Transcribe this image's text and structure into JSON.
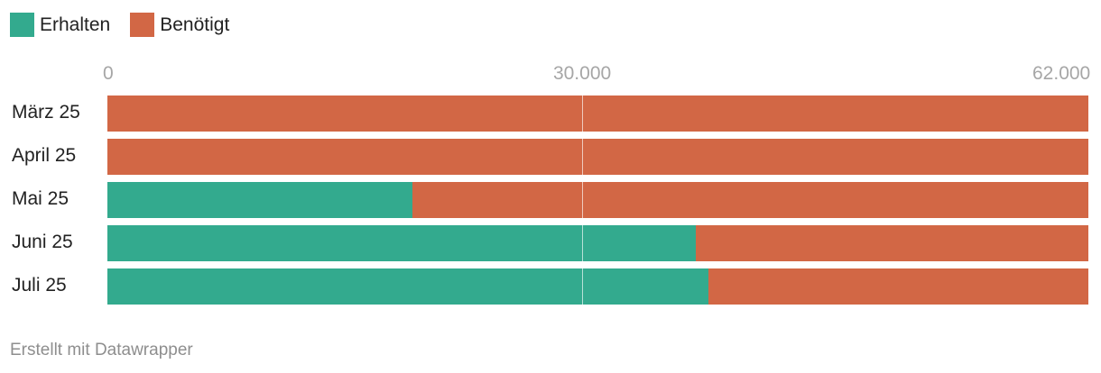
{
  "legend": {
    "items": [
      {
        "label": "Erhalten",
        "color": "#33aa8e"
      },
      {
        "label": "Benötigt",
        "color": "#d26745"
      }
    ]
  },
  "footer": {
    "credit": "Erstellt mit Datawrapper"
  },
  "chart_data": {
    "type": "bar",
    "orientation": "horizontal",
    "stacked": true,
    "categories": [
      "März 25",
      "April 25",
      "Mai 25",
      "Juni 25",
      "Juli 25"
    ],
    "series": [
      {
        "name": "Erhalten",
        "color": "#33aa8e",
        "values": [
          0,
          0,
          19300,
          37200,
          38000
        ]
      },
      {
        "name": "Benötigt",
        "color": "#d26745",
        "values": [
          62000,
          62000,
          42700,
          24800,
          24000
        ]
      }
    ],
    "ticks": [
      {
        "value": 0,
        "label": "0"
      },
      {
        "value": 30000,
        "label": "30.000"
      },
      {
        "value": 62000,
        "label": "62.000"
      }
    ],
    "xlim": [
      0,
      62000
    ],
    "xlabel": "",
    "ylabel": "",
    "title": "",
    "legend_position": "top-left",
    "grid": true
  }
}
